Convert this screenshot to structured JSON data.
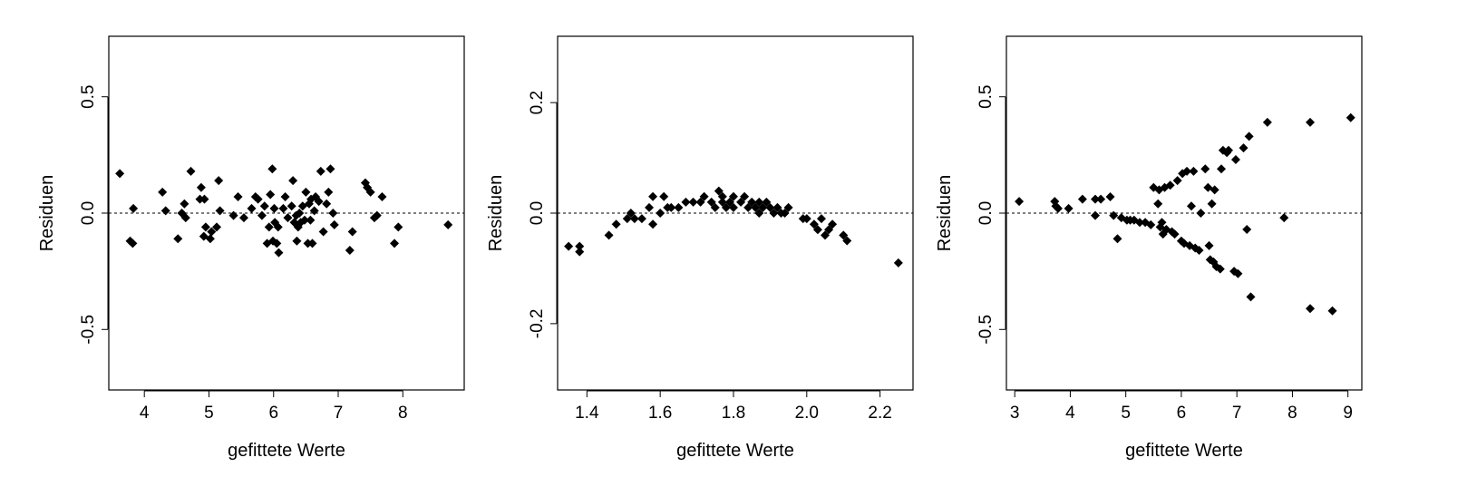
{
  "chart_data": [
    {
      "type": "scatter",
      "xlabel": "gefittete Werte",
      "ylabel": "Residuen",
      "xlim": [
        3.45,
        8.95
      ],
      "ylim": [
        -0.76,
        0.76
      ],
      "xticks": [
        4,
        5,
        6,
        7,
        8
      ],
      "yticks": [
        -0.5,
        0.0,
        0.5
      ],
      "reference_line": 0,
      "grid": false,
      "points": [
        [
          3.62,
          0.17
        ],
        [
          3.78,
          -0.12
        ],
        [
          3.82,
          -0.13
        ],
        [
          3.83,
          0.02
        ],
        [
          4.28,
          0.09
        ],
        [
          4.33,
          0.01
        ],
        [
          4.52,
          -0.11
        ],
        [
          4.58,
          0.0
        ],
        [
          4.62,
          0.04
        ],
        [
          4.64,
          -0.02
        ],
        [
          4.72,
          0.18
        ],
        [
          4.86,
          0.06
        ],
        [
          4.88,
          0.11
        ],
        [
          4.93,
          0.06
        ],
        [
          4.92,
          -0.1
        ],
        [
          4.95,
          -0.06
        ],
        [
          5.02,
          -0.11
        ],
        [
          5.04,
          -0.08
        ],
        [
          5.12,
          -0.06
        ],
        [
          5.15,
          0.14
        ],
        [
          5.17,
          0.01
        ],
        [
          5.38,
          -0.01
        ],
        [
          5.45,
          0.07
        ],
        [
          5.54,
          -0.02
        ],
        [
          5.66,
          0.02
        ],
        [
          5.72,
          0.07
        ],
        [
          5.76,
          0.06
        ],
        [
          5.82,
          -0.01
        ],
        [
          5.86,
          0.03
        ],
        [
          5.9,
          -0.13
        ],
        [
          5.93,
          -0.06
        ],
        [
          5.95,
          0.08
        ],
        [
          5.98,
          0.19
        ],
        [
          5.99,
          -0.12
        ],
        [
          6.01,
          0.02
        ],
        [
          6.02,
          -0.04
        ],
        [
          6.05,
          -0.13
        ],
        [
          6.07,
          -0.06
        ],
        [
          6.08,
          -0.17
        ],
        [
          6.15,
          0.02
        ],
        [
          6.18,
          0.07
        ],
        [
          6.22,
          -0.02
        ],
        [
          6.28,
          0.03
        ],
        [
          6.3,
          0.14
        ],
        [
          6.32,
          -0.04
        ],
        [
          6.35,
          -0.01
        ],
        [
          6.36,
          -0.12
        ],
        [
          6.38,
          -0.06
        ],
        [
          6.4,
          0.0
        ],
        [
          6.42,
          -0.04
        ],
        [
          6.45,
          0.03
        ],
        [
          6.48,
          -0.03
        ],
        [
          6.5,
          0.09
        ],
        [
          6.53,
          -0.13
        ],
        [
          6.55,
          0.04
        ],
        [
          6.57,
          -0.03
        ],
        [
          6.58,
          0.06
        ],
        [
          6.6,
          -0.13
        ],
        [
          6.63,
          0.01
        ],
        [
          6.65,
          0.07
        ],
        [
          6.7,
          0.05
        ],
        [
          6.73,
          0.18
        ],
        [
          6.77,
          -0.08
        ],
        [
          6.82,
          0.04
        ],
        [
          6.85,
          0.09
        ],
        [
          6.88,
          0.19
        ],
        [
          6.92,
          0.0
        ],
        [
          6.94,
          -0.05
        ],
        [
          7.18,
          -0.16
        ],
        [
          7.22,
          -0.08
        ],
        [
          7.42,
          0.13
        ],
        [
          7.45,
          0.11
        ],
        [
          7.5,
          0.09
        ],
        [
          7.56,
          -0.02
        ],
        [
          7.6,
          -0.01
        ],
        [
          7.68,
          0.07
        ],
        [
          7.87,
          -0.13
        ],
        [
          7.93,
          -0.06
        ],
        [
          8.7,
          -0.05
        ]
      ]
    },
    {
      "type": "scatter",
      "xlabel": "gefittete Werte",
      "ylabel": "Residuen",
      "xlim": [
        1.32,
        2.29
      ],
      "ylim": [
        -0.32,
        0.32
      ],
      "xticks": [
        1.4,
        1.6,
        1.8,
        2.0,
        2.2
      ],
      "yticks": [
        -0.2,
        0.0,
        0.2
      ],
      "reference_line": 0,
      "grid": false,
      "points": [
        [
          1.35,
          -0.06
        ],
        [
          1.38,
          -0.06
        ],
        [
          1.38,
          -0.07
        ],
        [
          1.46,
          -0.04
        ],
        [
          1.48,
          -0.02
        ],
        [
          1.51,
          -0.01
        ],
        [
          1.52,
          0.0
        ],
        [
          1.53,
          -0.01
        ],
        [
          1.55,
          -0.01
        ],
        [
          1.57,
          0.01
        ],
        [
          1.58,
          -0.02
        ],
        [
          1.58,
          0.03
        ],
        [
          1.6,
          0.0
        ],
        [
          1.61,
          0.03
        ],
        [
          1.62,
          0.01
        ],
        [
          1.63,
          0.01
        ],
        [
          1.65,
          0.01
        ],
        [
          1.67,
          0.02
        ],
        [
          1.69,
          0.02
        ],
        [
          1.71,
          0.02
        ],
        [
          1.72,
          0.03
        ],
        [
          1.74,
          0.02
        ],
        [
          1.75,
          0.01
        ],
        [
          1.76,
          0.04
        ],
        [
          1.77,
          0.03
        ],
        [
          1.77,
          0.02
        ],
        [
          1.78,
          0.01
        ],
        [
          1.79,
          0.02
        ],
        [
          1.8,
          0.03
        ],
        [
          1.8,
          0.01
        ],
        [
          1.82,
          0.02
        ],
        [
          1.83,
          0.03
        ],
        [
          1.84,
          0.01
        ],
        [
          1.85,
          0.02
        ],
        [
          1.86,
          0.01
        ],
        [
          1.87,
          0.02
        ],
        [
          1.87,
          0.0
        ],
        [
          1.88,
          0.01
        ],
        [
          1.89,
          0.02
        ],
        [
          1.9,
          0.01
        ],
        [
          1.91,
          0.0
        ],
        [
          1.92,
          0.01
        ],
        [
          1.93,
          0.0
        ],
        [
          1.94,
          0.0
        ],
        [
          1.95,
          0.01
        ],
        [
          1.99,
          -0.01
        ],
        [
          2.0,
          -0.01
        ],
        [
          2.02,
          -0.02
        ],
        [
          2.03,
          -0.03
        ],
        [
          2.04,
          -0.01
        ],
        [
          2.05,
          -0.04
        ],
        [
          2.06,
          -0.03
        ],
        [
          2.07,
          -0.02
        ],
        [
          2.1,
          -0.04
        ],
        [
          2.11,
          -0.05
        ],
        [
          2.25,
          -0.09
        ]
      ]
    },
    {
      "type": "scatter",
      "xlabel": "gefittete Werte",
      "ylabel": "Residuen",
      "xlim": [
        2.85,
        9.25
      ],
      "ylim": [
        -0.76,
        0.76
      ],
      "xticks": [
        3,
        4,
        5,
        6,
        7,
        8,
        9
      ],
      "yticks": [
        -0.5,
        0.0,
        0.5
      ],
      "reference_line": 0,
      "grid": false,
      "points": [
        [
          3.08,
          0.05
        ],
        [
          3.72,
          0.05
        ],
        [
          3.74,
          0.03
        ],
        [
          3.78,
          0.02
        ],
        [
          3.97,
          0.02
        ],
        [
          4.22,
          0.06
        ],
        [
          4.45,
          0.06
        ],
        [
          4.45,
          -0.01
        ],
        [
          4.55,
          0.06
        ],
        [
          4.72,
          0.07
        ],
        [
          4.78,
          -0.01
        ],
        [
          4.85,
          -0.11
        ],
        [
          4.92,
          -0.02
        ],
        [
          5.02,
          -0.03
        ],
        [
          5.08,
          -0.03
        ],
        [
          5.15,
          -0.03
        ],
        [
          5.25,
          -0.04
        ],
        [
          5.35,
          -0.04
        ],
        [
          5.45,
          -0.05
        ],
        [
          5.5,
          0.11
        ],
        [
          5.58,
          0.04
        ],
        [
          5.6,
          0.1
        ],
        [
          5.62,
          -0.06
        ],
        [
          5.65,
          -0.04
        ],
        [
          5.67,
          -0.09
        ],
        [
          5.7,
          0.11
        ],
        [
          5.73,
          -0.07
        ],
        [
          5.8,
          0.12
        ],
        [
          5.83,
          -0.08
        ],
        [
          5.88,
          -0.09
        ],
        [
          5.93,
          0.14
        ],
        [
          6.0,
          -0.12
        ],
        [
          6.02,
          0.17
        ],
        [
          6.05,
          -0.13
        ],
        [
          6.1,
          0.18
        ],
        [
          6.15,
          -0.14
        ],
        [
          6.18,
          0.03
        ],
        [
          6.22,
          0.18
        ],
        [
          6.25,
          -0.15
        ],
        [
          6.32,
          -0.16
        ],
        [
          6.35,
          0.0
        ],
        [
          6.43,
          0.19
        ],
        [
          6.48,
          0.11
        ],
        [
          6.5,
          -0.14
        ],
        [
          6.52,
          -0.2
        ],
        [
          6.55,
          0.04
        ],
        [
          6.58,
          -0.21
        ],
        [
          6.6,
          0.1
        ],
        [
          6.63,
          -0.23
        ],
        [
          6.7,
          -0.24
        ],
        [
          6.72,
          0.19
        ],
        [
          6.75,
          0.27
        ],
        [
          6.82,
          0.26
        ],
        [
          6.85,
          0.27
        ],
        [
          6.95,
          -0.25
        ],
        [
          6.98,
          0.23
        ],
        [
          7.02,
          -0.26
        ],
        [
          7.12,
          0.28
        ],
        [
          7.18,
          -0.07
        ],
        [
          7.22,
          0.33
        ],
        [
          7.25,
          -0.36
        ],
        [
          7.55,
          0.39
        ],
        [
          7.85,
          -0.02
        ],
        [
          8.32,
          0.39
        ],
        [
          8.32,
          -0.41
        ],
        [
          8.72,
          -0.42
        ],
        [
          9.05,
          0.41
        ]
      ]
    }
  ]
}
